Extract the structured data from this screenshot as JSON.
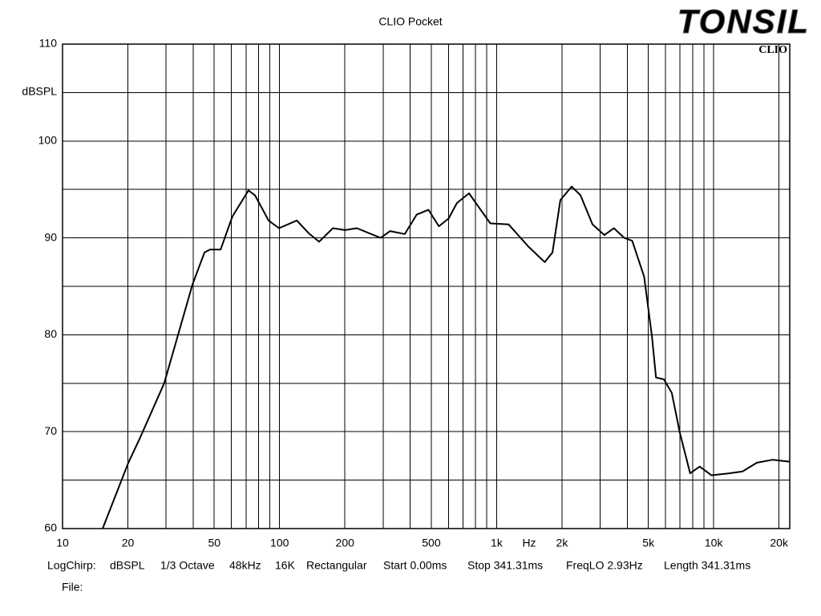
{
  "chart_data": {
    "type": "line",
    "title": "CLIO Pocket",
    "brand": "TONSIL",
    "badge": "CLIO",
    "ylabel": "dBSPL",
    "xlabel": "Hz",
    "log_x": true,
    "grid": true,
    "xlim": [
      10,
      22400
    ],
    "ylim": [
      60,
      110
    ],
    "yticks": [
      60,
      70,
      80,
      90,
      100,
      110
    ],
    "yminor": [
      65,
      75,
      85,
      95,
      105
    ],
    "xticks": [
      10,
      20,
      50,
      100,
      200,
      500,
      {
        "value": 1000,
        "label": "1k"
      },
      {
        "value": 2000,
        "label": "2k"
      },
      {
        "value": 5000,
        "label": "5k"
      },
      {
        "value": 10000,
        "label": "10k"
      },
      {
        "value": 20000,
        "label": "20k"
      }
    ],
    "xminor": [
      30,
      40,
      60,
      70,
      80,
      90,
      300,
      400,
      600,
      700,
      800,
      900,
      3000,
      4000,
      6000,
      7000,
      8000,
      9000
    ],
    "x": [
      15.3,
      20.1,
      22.8,
      29.4,
      39.7,
      45.1,
      47.8,
      53.5,
      60.6,
      71.9,
      77,
      89,
      99.4,
      120,
      136,
      152,
      176,
      200,
      227,
      292,
      323,
      377,
      428,
      485,
      542,
      601,
      656,
      746,
      844,
      935,
      1135,
      1401,
      1665,
      1809,
      1966,
      2215,
      2433,
      2764,
      3134,
      3468,
      3871,
      4210,
      4780,
      5197,
      5423,
      5899,
      6410,
      6980,
      7790,
      8620,
      9770,
      11800,
      13600,
      15800,
      18700,
      22400
    ],
    "series": [
      {
        "color": "#000000",
        "values": [
          60,
          66.8,
          69.4,
          75,
          85.2,
          88.5,
          88.8,
          88.8,
          92.2,
          94.9,
          94.4,
          91.8,
          91,
          91.8,
          90.5,
          89.6,
          91,
          90.8,
          91,
          90,
          90.7,
          90.4,
          92.4,
          92.9,
          91.2,
          92,
          93.6,
          94.6,
          92.9,
          91.5,
          91.4,
          89.1,
          87.5,
          88.5,
          93.9,
          95.3,
          94.4,
          91.4,
          90.3,
          91,
          90,
          89.7,
          86,
          79.8,
          75.6,
          75.4,
          74,
          69.9,
          65.7,
          66.4,
          65.5,
          65.7,
          65.9,
          66.8,
          67.1,
          66.9
        ]
      }
    ]
  },
  "footer": {
    "info": [
      "LogChirp:",
      "dBSPL",
      "1/3 Octave",
      "48kHz",
      "16K",
      "Rectangular",
      "Start 0.00ms",
      "Stop 341.31ms",
      "FreqLO 2.93Hz",
      "Length 341.31ms"
    ],
    "file": "File:"
  }
}
